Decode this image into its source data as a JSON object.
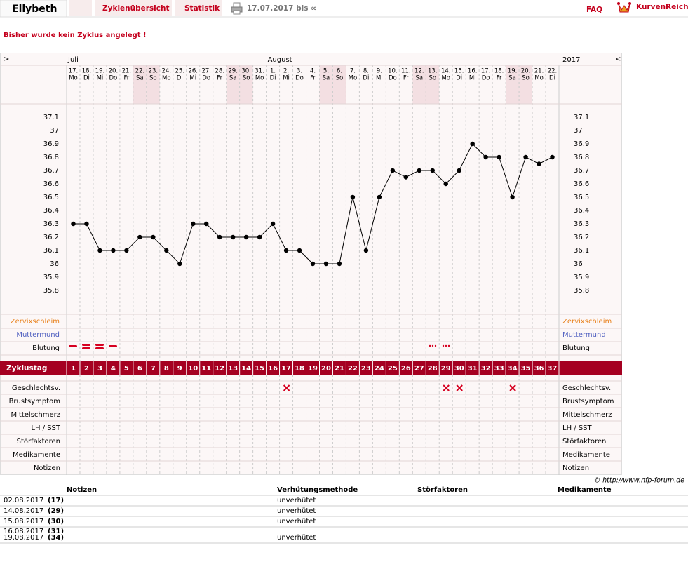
{
  "header": {
    "user": "Ellybeth",
    "tabs": [
      "Zyklenübersicht",
      "Statistik"
    ],
    "range": "17.07.2017 bis ∞",
    "faq": "FAQ",
    "logo": "KurvenReich"
  },
  "message": "Bisher wurde kein Zyklus angelegt !",
  "chart_data": {
    "type": "line",
    "nav_left": ">",
    "nav_right": "<",
    "months": [
      "Juli",
      "August"
    ],
    "year": "2017",
    "categories": [
      "17.",
      "18.",
      "19.",
      "20.",
      "21.",
      "22.",
      "23.",
      "24.",
      "25.",
      "26.",
      "27.",
      "28.",
      "29.",
      "30.",
      "31.",
      "1.",
      "2.",
      "3.",
      "4.",
      "5.",
      "6.",
      "7.",
      "8.",
      "9.",
      "10.",
      "11.",
      "12.",
      "13.",
      "14.",
      "15.",
      "16.",
      "17.",
      "18.",
      "19.",
      "20.",
      "21.",
      "22."
    ],
    "weekdays": [
      "Mo",
      "Di",
      "Mi",
      "Do",
      "Fr",
      "Sa",
      "So",
      "Mo",
      "Di",
      "Mi",
      "Do",
      "Fr",
      "Sa",
      "So",
      "Mo",
      "Di",
      "Mi",
      "Do",
      "Fr",
      "Sa",
      "So",
      "Mo",
      "Di",
      "Mi",
      "Do",
      "Fr",
      "Sa",
      "So",
      "Mo",
      "Di",
      "Mi",
      "Do",
      "Fr",
      "Sa",
      "So",
      "Mo",
      "Di"
    ],
    "values": [
      36.3,
      36.3,
      36.1,
      36.1,
      36.1,
      36.2,
      36.2,
      36.1,
      36.0,
      36.3,
      36.3,
      36.2,
      36.2,
      36.2,
      36.2,
      36.3,
      36.1,
      36.1,
      36.0,
      36.0,
      36.0,
      36.5,
      36.1,
      36.5,
      36.7,
      36.65,
      36.7,
      36.7,
      36.6,
      36.7,
      36.9,
      36.8,
      36.8,
      36.5,
      36.8,
      36.75,
      36.8
    ],
    "color": "#000000",
    "ylim": [
      35.8,
      37.1
    ],
    "yticks": [
      37.1,
      37,
      36.9,
      36.8,
      36.7,
      36.6,
      36.5,
      36.4,
      36.3,
      36.2,
      36.1,
      36,
      35.9,
      35.8
    ],
    "rows_top": [
      {
        "label": "Zervixschleim",
        "color": "#e8801a"
      },
      {
        "label": "Muttermund",
        "color": "#5060c0"
      },
      {
        "label": "Blutung",
        "color": "#000000"
      }
    ],
    "cycle_label": "Zyklustag",
    "cycle_days": [
      1,
      2,
      3,
      4,
      5,
      6,
      7,
      8,
      9,
      10,
      11,
      12,
      13,
      14,
      15,
      16,
      17,
      18,
      19,
      20,
      21,
      22,
      23,
      24,
      25,
      26,
      27,
      28,
      29,
      30,
      31,
      32,
      33,
      34,
      35,
      36,
      37
    ],
    "rows_bottom": [
      "Geschlechtsv.",
      "Brustsymptom",
      "Mittelschmerz",
      "LH / SST",
      "Störfaktoren",
      "Medikamente",
      "Notizen"
    ]
  },
  "copyright": "© http://www.nfp-forum.de",
  "notes_table": {
    "columns": [
      "Notizen",
      "Verhütungsmethode",
      "Störfaktoren",
      "Medikamente"
    ],
    "rows": [
      {
        "date": "02.08.2017",
        "day": "(17)",
        "method": "unverhütet"
      },
      {
        "date": "14.08.2017",
        "day": "(29)",
        "method": "unverhütet"
      },
      {
        "date": "15.08.2017",
        "day": "(30)",
        "method": "unverhütet"
      },
      {
        "date": "16.08.2017",
        "day": "(31)"
      },
      {
        "date": "19.08.2017",
        "day": "(34)",
        "method": "unverhütet"
      }
    ]
  }
}
